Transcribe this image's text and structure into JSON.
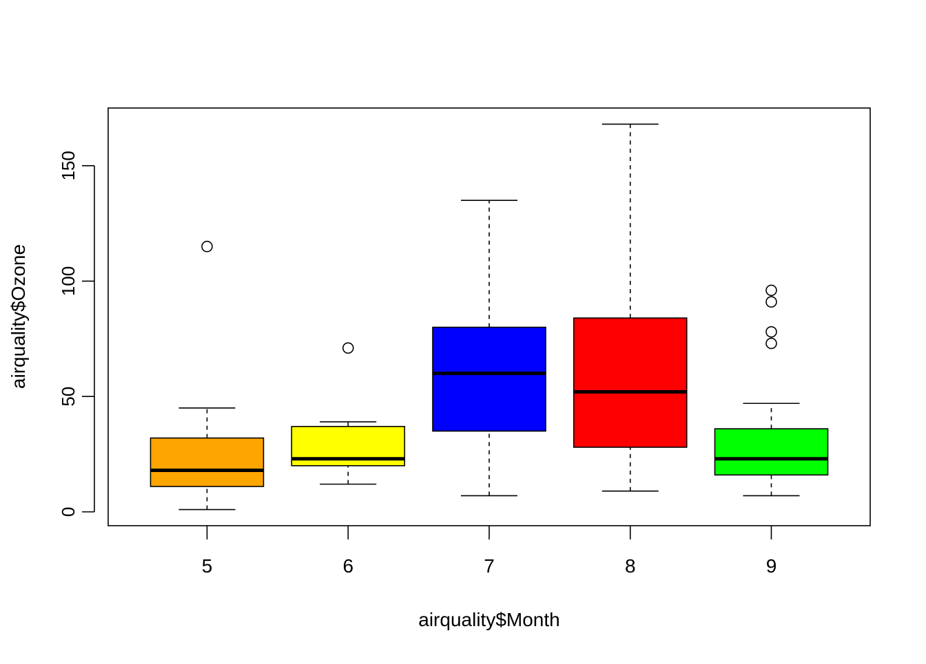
{
  "chart_data": {
    "type": "boxplot",
    "title": "",
    "xlabel": "airquality$Month",
    "ylabel": "airquality$Ozone",
    "ylim": [
      -6,
      175
    ],
    "yticks": [
      0,
      50,
      100,
      150
    ],
    "grid": false,
    "boxes": [
      {
        "category": "5",
        "color": "#FFA500",
        "whisker_low": 1,
        "q1": 11,
        "median": 18,
        "q3": 32,
        "whisker_high": 45,
        "outliers": [
          115
        ]
      },
      {
        "category": "6",
        "color": "#FFFF00",
        "whisker_low": 12,
        "q1": 20,
        "median": 23,
        "q3": 37,
        "whisker_high": 39,
        "outliers": [
          71
        ]
      },
      {
        "category": "7",
        "color": "#0000FF",
        "whisker_low": 7,
        "q1": 35,
        "median": 60,
        "q3": 80,
        "whisker_high": 135,
        "outliers": []
      },
      {
        "category": "8",
        "color": "#FF0000",
        "whisker_low": 9,
        "q1": 28,
        "median": 52,
        "q3": 84,
        "whisker_high": 168,
        "outliers": []
      },
      {
        "category": "9",
        "color": "#00FF00",
        "whisker_low": 7,
        "q1": 16,
        "median": 23,
        "q3": 36,
        "whisker_high": 47,
        "outliers": [
          73,
          78,
          91,
          96
        ]
      }
    ]
  }
}
